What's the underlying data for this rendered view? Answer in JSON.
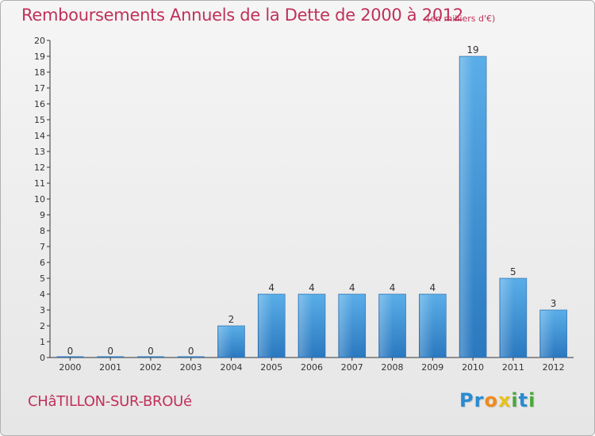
{
  "header": {
    "title": "Remboursements Annuels de la Dette de 2000 à 2012",
    "subtitle": "(en milliers d'€)"
  },
  "footer": {
    "place": "CHâTILLON-SUR-BROUé",
    "logo": {
      "text": "Proxiti",
      "letters": [
        {
          "char": "P",
          "color": "#2a8bd0"
        },
        {
          "char": "r",
          "color": "#2a8bd0"
        },
        {
          "char": "o",
          "color": "#f08a1c"
        },
        {
          "char": "x",
          "color": "#e8c21a"
        },
        {
          "char": "i",
          "color": "#4aa83b"
        },
        {
          "char": "t",
          "color": "#2a8bd0"
        },
        {
          "char": "i",
          "color": "#4aa83b"
        }
      ]
    }
  },
  "colors": {
    "title": "#c0305a",
    "bar_top": "#5aaee8",
    "bar_bottom": "#2a78bf",
    "axis": "#333333"
  },
  "chart_data": {
    "type": "bar",
    "categories": [
      "2000",
      "2001",
      "2002",
      "2003",
      "2004",
      "2005",
      "2006",
      "2007",
      "2008",
      "2009",
      "2010",
      "2011",
      "2012"
    ],
    "values": [
      0,
      0,
      0,
      0,
      2,
      4,
      4,
      4,
      4,
      4,
      19,
      5,
      3
    ],
    "data_labels": [
      "0",
      "0",
      "0",
      "0",
      "2",
      "4",
      "4",
      "4",
      "4",
      "4",
      "19",
      "5",
      "3"
    ],
    "ylim": [
      0,
      20
    ],
    "yticks": [
      0,
      1,
      2,
      3,
      4,
      5,
      6,
      7,
      8,
      9,
      10,
      11,
      12,
      13,
      14,
      15,
      16,
      17,
      18,
      19,
      20
    ],
    "ytick_labels": [
      "0",
      "1",
      "2",
      "3",
      "4",
      "5",
      "6",
      "7",
      "8",
      "9",
      "10",
      "11",
      "12",
      "13",
      "14",
      "15",
      "16",
      "17",
      "18",
      "19",
      "20"
    ],
    "xlabel": "",
    "ylabel": "",
    "grid": false,
    "legend": "none"
  }
}
